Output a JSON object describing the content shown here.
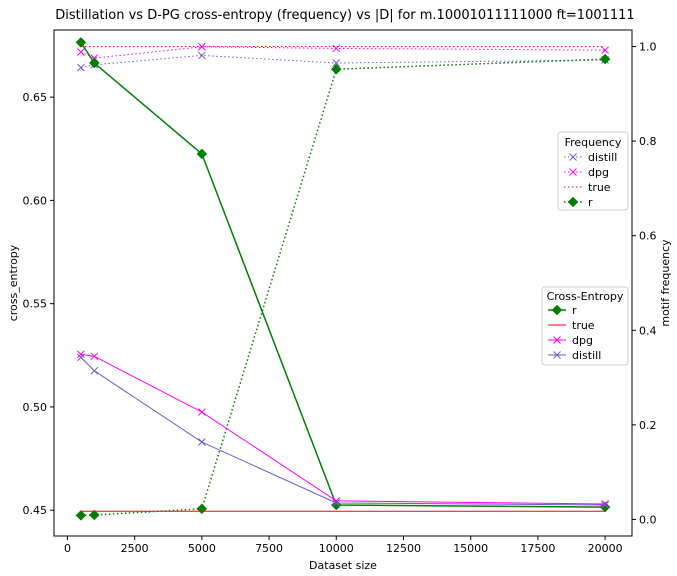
{
  "chart_data": {
    "type": "line",
    "title": "Distillation vs D-PG cross-entropy (frequency) vs |D| for m.10001011111000 ft=1001111",
    "xlabel": "Dataset size",
    "ylabel_left": "cross_entropy",
    "ylabel_right": "motif frequency",
    "xlim": [
      -500,
      21000
    ],
    "ylim_left": [
      0.4375,
      0.6825
    ],
    "ylim_right": [
      -0.035,
      1.035
    ],
    "x_ticks": [
      0,
      2500,
      5000,
      7500,
      10000,
      12500,
      15000,
      17500,
      20000
    ],
    "x_tick_labels": [
      "0",
      "2500",
      "5000",
      "7500",
      "10000",
      "12500",
      "15000",
      "17500",
      "20000"
    ],
    "y_left_ticks": [
      0.45,
      0.5,
      0.55,
      0.6,
      0.65
    ],
    "y_left_tick_labels": [
      "0.45",
      "0.50",
      "0.55",
      "0.60",
      "0.65"
    ],
    "y_right_ticks": [
      0.0,
      0.2,
      0.4,
      0.6,
      0.8,
      1.0
    ],
    "y_right_tick_labels": [
      "0.0",
      "0.2",
      "0.4",
      "0.6",
      "0.8",
      "1.0"
    ],
    "grid": false,
    "x": [
      500,
      1000,
      5000,
      10000,
      20000
    ],
    "ce_series": [
      {
        "name": "r",
        "axis": "left",
        "color": "#008000",
        "marker": "diamond",
        "dash": "solid",
        "values": [
          0.6765,
          0.6665,
          0.6225,
          0.4525,
          0.4515
        ]
      },
      {
        "name": "true",
        "axis": "left",
        "color": "#ff0000",
        "marker": "none",
        "dash": "solid",
        "values": [
          0.4495,
          0.4495,
          0.4495,
          0.4495,
          0.4495
        ]
      },
      {
        "name": "dpg",
        "axis": "left",
        "color": "#ff00ff",
        "marker": "x",
        "dash": "solid",
        "values": [
          0.5255,
          0.5245,
          0.4975,
          0.4545,
          0.453
        ]
      },
      {
        "name": "distill",
        "axis": "left",
        "color": "#6a5acd",
        "marker": "x",
        "dash": "solid",
        "values": [
          0.524,
          0.5175,
          0.483,
          0.4535,
          0.4525
        ]
      }
    ],
    "freq_series": [
      {
        "name": "distill",
        "axis": "right",
        "color": "#6a5acd",
        "marker": "x",
        "dash": "dotted",
        "values": [
          0.9554,
          0.9615,
          0.9812,
          0.9652,
          0.9715
        ]
      },
      {
        "name": "dpg",
        "axis": "right",
        "color": "#ff00ff",
        "marker": "x",
        "dash": "dotted",
        "values": [
          0.9885,
          0.9755,
          0.9995,
          0.996,
          0.9925
        ]
      },
      {
        "name": "true",
        "axis": "right",
        "color": "#ff0000",
        "marker": "none",
        "dash": "dotted",
        "values": [
          1.0,
          1.0,
          1.0,
          1.0,
          1.0
        ]
      },
      {
        "name": "r",
        "axis": "right",
        "color": "#008000",
        "marker": "diamond",
        "dash": "dotted",
        "values": [
          0.0085,
          0.0095,
          0.0225,
          0.952,
          0.9735
        ]
      }
    ],
    "legend_freq": {
      "title": "Frequency",
      "placement": "center-right",
      "entries": [
        "distill",
        "dpg",
        "true",
        "r"
      ]
    },
    "legend_ce": {
      "title": "Cross-Entropy",
      "placement": "lower-right",
      "entries": [
        "r",
        "true",
        "dpg",
        "distill"
      ]
    }
  }
}
